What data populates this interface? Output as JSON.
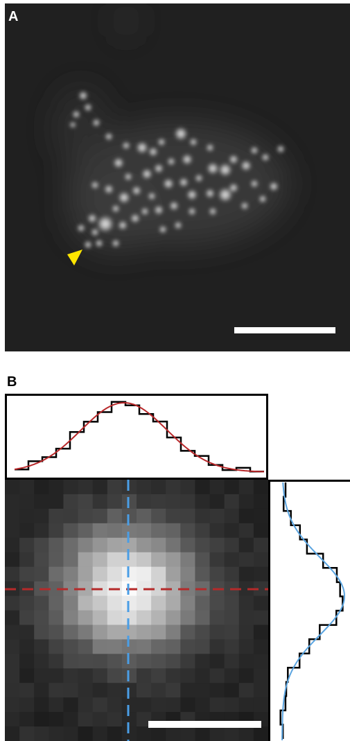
{
  "figure": {
    "panel_a_label": "A",
    "panel_b_label": "B"
  },
  "colors": {
    "background_dark": "#202020",
    "arrowhead": "#ffe600",
    "scale_bar": "#ffffff",
    "horizontal_profile_fit": "#b8282a",
    "vertical_profile_fit": "#5aa4e0",
    "horizontal_cut_line": "#b52a2a",
    "vertical_cut_line": "#4a9ee6",
    "histogram": "#000000"
  },
  "icons": {
    "arrowhead": "yellow-arrowhead-icon"
  }
}
